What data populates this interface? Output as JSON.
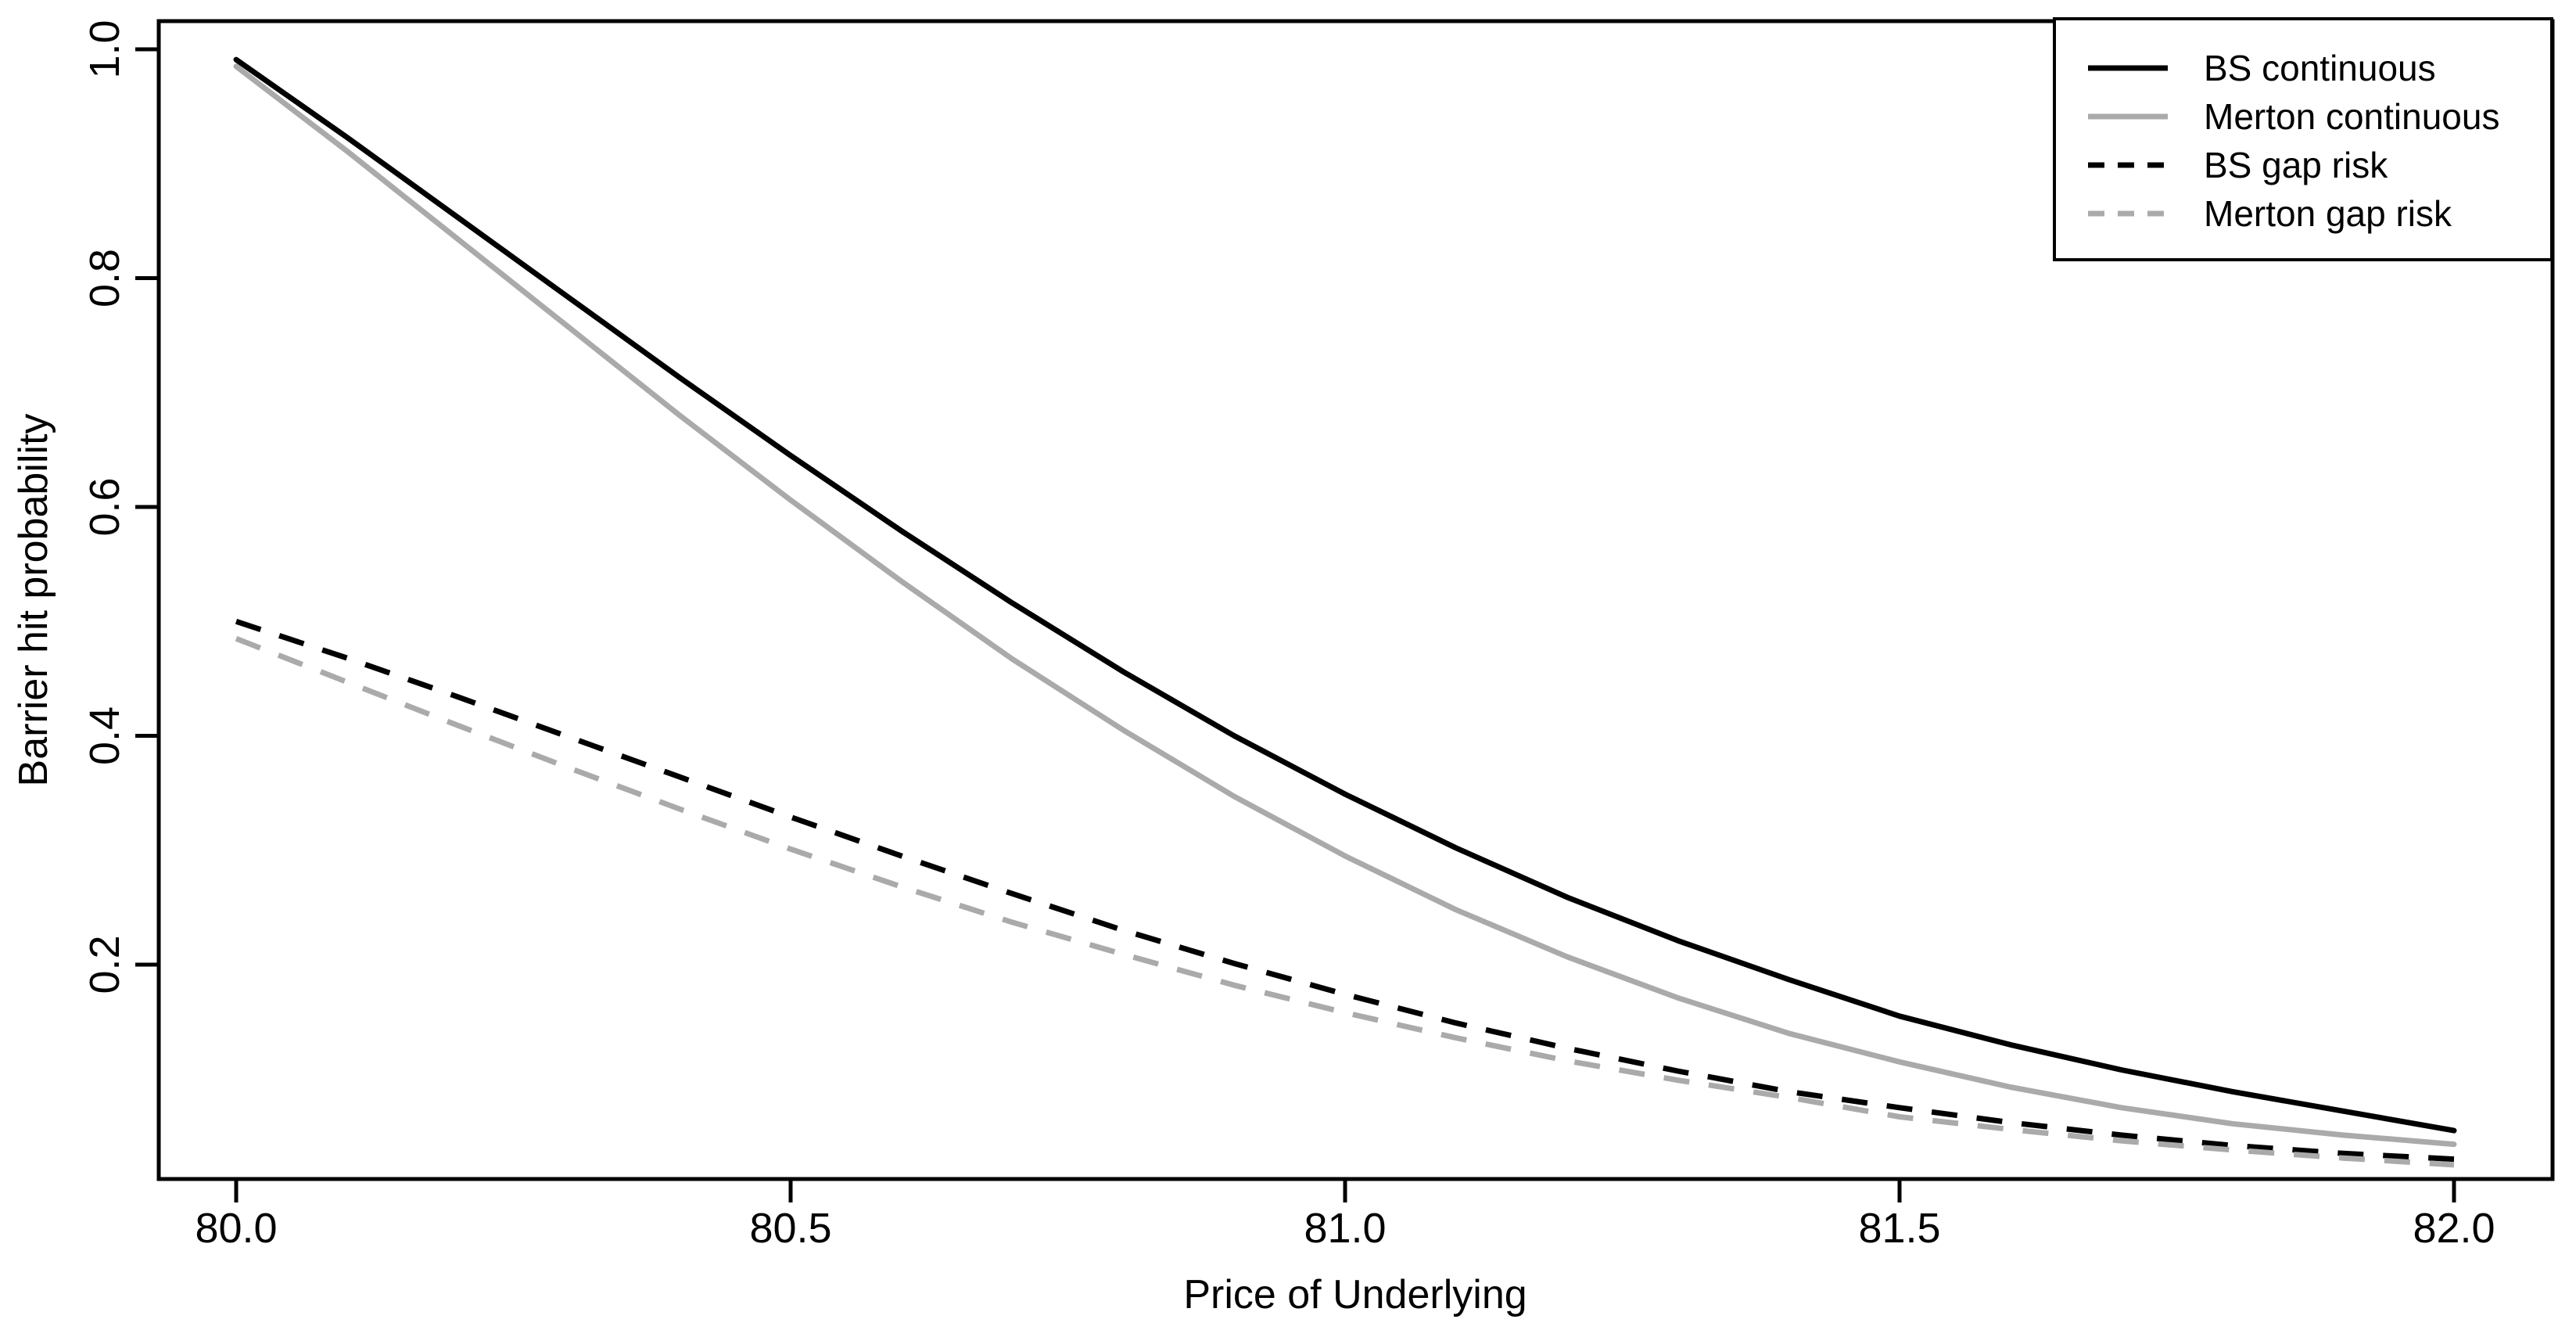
{
  "chart_data": {
    "type": "line",
    "title": "",
    "xlabel": "Price of Underlying",
    "ylabel": "Barrier hit probability",
    "xlim": [
      79.93,
      82.09
    ],
    "ylim": [
      0.012,
      1.025
    ],
    "grid": false,
    "legend_position": "topright",
    "x_ticks": [
      80.0,
      80.5,
      81.0,
      81.5,
      82.0
    ],
    "x_tick_labels": [
      "80.0",
      "80.5",
      "81.0",
      "81.5",
      "82.0"
    ],
    "y_ticks": [
      0.2,
      0.4,
      0.6,
      0.8,
      1.0
    ],
    "y_tick_labels": [
      "0.2",
      "0.4",
      "0.6",
      "0.8",
      "1.0"
    ],
    "x": [
      80.0,
      80.1,
      80.2,
      80.3,
      80.4,
      80.5,
      80.6,
      80.7,
      80.8,
      80.9,
      81.0,
      81.1,
      81.2,
      81.3,
      81.4,
      81.5,
      81.6,
      81.7,
      81.8,
      81.9,
      82.0
    ],
    "series": [
      {
        "name": "BS continuous",
        "color": "#000000",
        "line_style": "solid",
        "values": [
          0.991,
          0.923,
          0.853,
          0.783,
          0.713,
          0.645,
          0.579,
          0.516,
          0.456,
          0.4,
          0.349,
          0.302,
          0.259,
          0.221,
          0.187,
          0.155,
          0.13,
          0.108,
          0.089,
          0.072,
          0.055
        ]
      },
      {
        "name": "Merton continuous",
        "color": "#aaaaaa",
        "line_style": "solid",
        "values": [
          0.985,
          0.911,
          0.834,
          0.757,
          0.68,
          0.606,
          0.535,
          0.467,
          0.405,
          0.347,
          0.295,
          0.248,
          0.207,
          0.171,
          0.14,
          0.115,
          0.093,
          0.075,
          0.061,
          0.051,
          0.043
        ]
      },
      {
        "name": "BS gap risk",
        "color": "#000000",
        "line_style": "dashed",
        "values": [
          0.5,
          0.468,
          0.434,
          0.399,
          0.364,
          0.329,
          0.295,
          0.262,
          0.23,
          0.201,
          0.174,
          0.149,
          0.127,
          0.107,
          0.089,
          0.075,
          0.062,
          0.051,
          0.042,
          0.035,
          0.03
        ]
      },
      {
        "name": "Merton gap risk",
        "color": "#aaaaaa",
        "line_style": "dashed",
        "values": [
          0.485,
          0.447,
          0.409,
          0.372,
          0.336,
          0.301,
          0.268,
          0.237,
          0.209,
          0.182,
          0.158,
          0.136,
          0.116,
          0.099,
          0.084,
          0.067,
          0.056,
          0.046,
          0.038,
          0.031,
          0.025
        ]
      }
    ]
  },
  "colors": {
    "foreground": "#000000",
    "gray_series": "#aaaaaa",
    "background": "#ffffff"
  }
}
